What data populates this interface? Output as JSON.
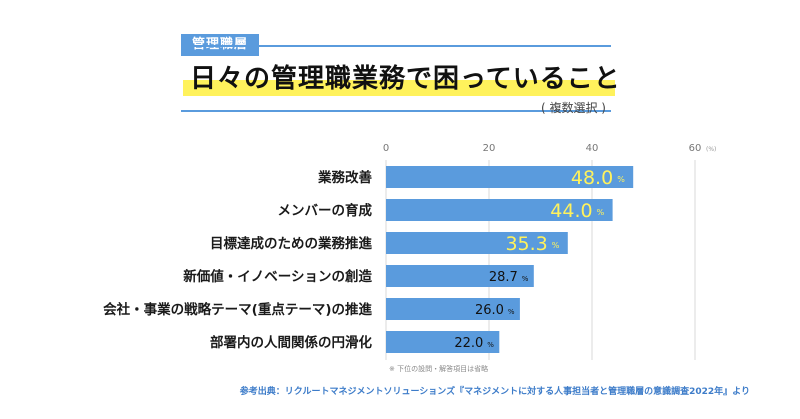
{
  "header": {
    "tag": "管理職層",
    "title": "日々の管理職業務で困っていること",
    "subtitle": "( 複数選択 )"
  },
  "chart_data": {
    "type": "bar",
    "orientation": "horizontal",
    "title": "日々の管理職業務で困っていること",
    "categories": [
      "業務改善",
      "メンバーの育成",
      "目標達成のための業務推進",
      "新価値・イノベーションの創造",
      "会社・事業の戦略テーマ(重点テーマ)の推進",
      "部署内の人間関係の円滑化"
    ],
    "values": [
      48.0,
      44.0,
      35.3,
      28.7,
      26.0,
      22.0
    ],
    "value_labels": [
      "48.0",
      "44.0",
      "35.3",
      "28.7",
      "26.0",
      "22.0"
    ],
    "value_unit": "%",
    "highlight_top": 3,
    "xlim": [
      0,
      60
    ],
    "x_ticks": [
      0,
      20,
      40,
      60
    ],
    "x_tick_labels": [
      "0",
      "20",
      "40",
      "60"
    ],
    "tick_unit_label": "(%)",
    "grid": true,
    "colors": {
      "bar": "#5a9bdd",
      "highlight_text": "#fff25c",
      "label_text": "#1a1a1a",
      "grid": "#d8d8d8"
    }
  },
  "footer": {
    "note": "※ 下位の設問・解答項目は省略",
    "source": "参考出典：リクルートマネジメントソリューションズ『マネジメントに対する人事担当者と管理職層の意識調査2022年』より"
  }
}
